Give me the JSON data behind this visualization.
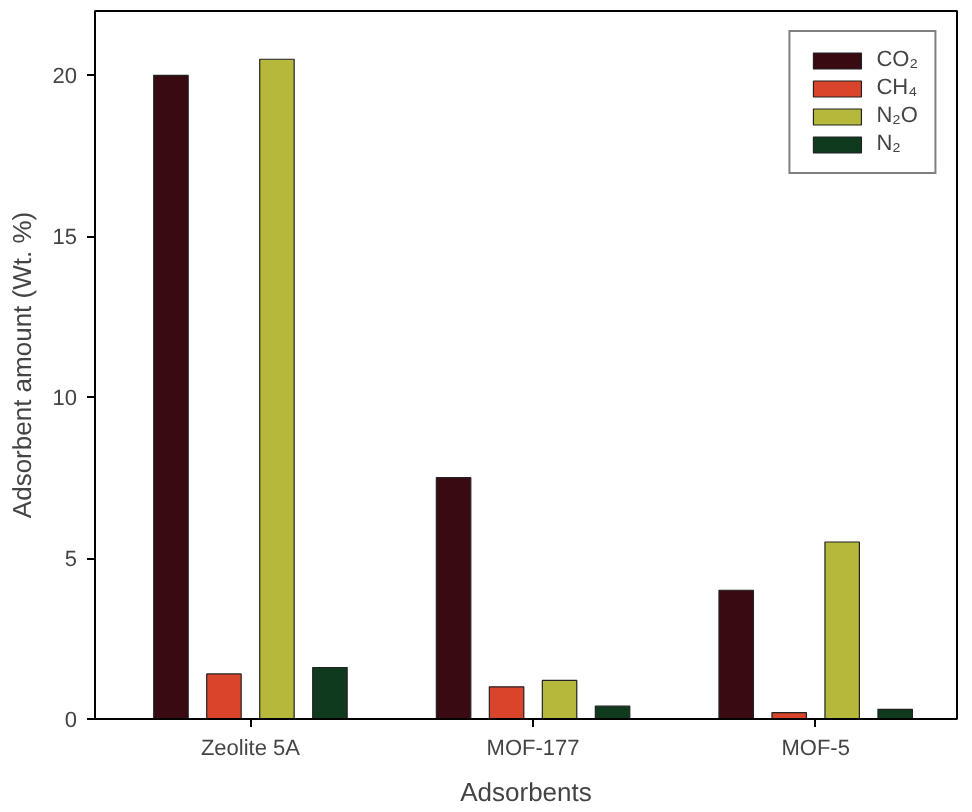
{
  "chart_data": {
    "type": "bar",
    "xlabel": "Adsorbents",
    "ylabel": "Adsorbent amount (Wt. %)",
    "categories": [
      "Zeolite 5A",
      "MOF-177",
      "MOF-5"
    ],
    "series": [
      {
        "name": "CO₂",
        "color": "#3a0a12",
        "values": [
          20.0,
          7.5,
          4.0
        ]
      },
      {
        "name": "CH₄",
        "color": "#d9452a",
        "values": [
          1.4,
          1.0,
          0.2
        ]
      },
      {
        "name": "N₂O",
        "color": "#b5b83a",
        "values": [
          20.5,
          1.2,
          5.5
        ]
      },
      {
        "name": "N₂",
        "color": "#0f3a1e",
        "values": [
          1.6,
          0.4,
          0.3
        ]
      }
    ],
    "ylim": [
      0,
      22
    ],
    "yticks": [
      0,
      5,
      10,
      15,
      20
    ],
    "grid": false,
    "legend": "top right"
  }
}
